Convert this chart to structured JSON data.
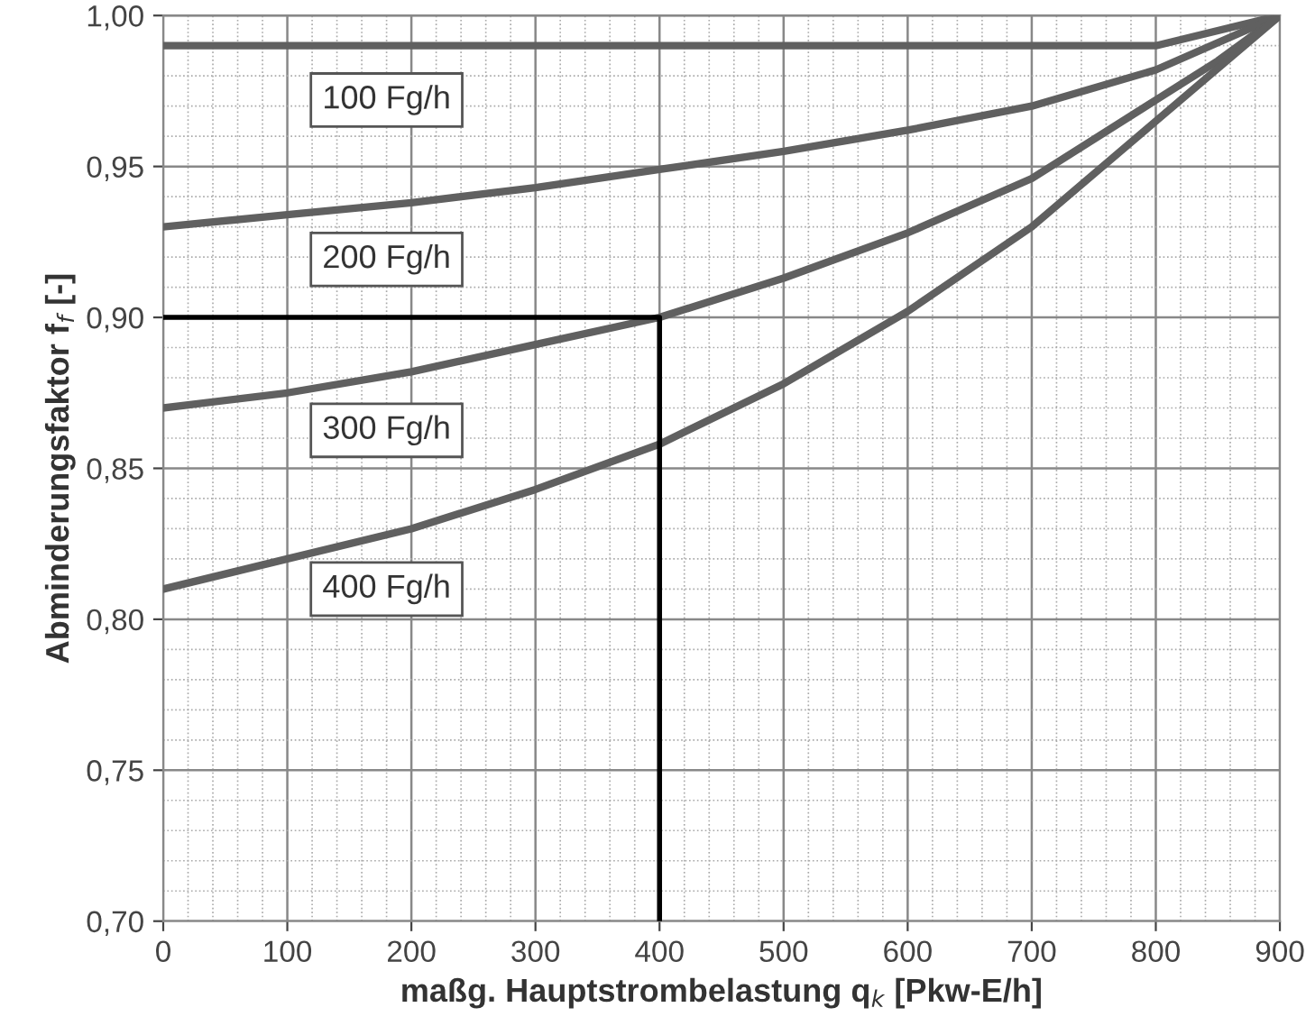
{
  "chart_data": {
    "type": "line",
    "xlabel": "maßg. Hauptstrombelastung q$_{k}$ [Pkw-E/h]",
    "ylabel": "Abminderungsfaktor f$_{f}$ [-]",
    "series": [
      {
        "name": "100 Fg/h",
        "color": "#606060",
        "x": [
          0,
          800,
          900
        ],
        "values": [
          0.99,
          0.99,
          1.0
        ]
      },
      {
        "name": "200 Fg/h",
        "color": "#606060",
        "x": [
          0,
          100,
          200,
          300,
          400,
          500,
          600,
          700,
          800,
          900
        ],
        "values": [
          0.93,
          0.934,
          0.938,
          0.943,
          0.949,
          0.955,
          0.962,
          0.97,
          0.982,
          1.0
        ]
      },
      {
        "name": "300 Fg/h",
        "color": "#606060",
        "x": [
          0,
          100,
          200,
          300,
          400,
          500,
          600,
          700,
          800,
          850,
          900
        ],
        "values": [
          0.87,
          0.875,
          0.882,
          0.891,
          0.9,
          0.913,
          0.928,
          0.946,
          0.972,
          0.985,
          1.0
        ]
      },
      {
        "name": "400 Fg/h",
        "color": "#606060",
        "x": [
          0,
          100,
          200,
          300,
          400,
          500,
          600,
          700,
          800,
          900
        ],
        "values": [
          0.81,
          0.82,
          0.83,
          0.843,
          0.858,
          0.878,
          0.902,
          0.93,
          0.965,
          1.0
        ]
      },
      {
        "color": "#000000",
        "x": [
          400,
          400,
          0
        ],
        "values": [
          0.7,
          0.9,
          0.9
        ]
      }
    ],
    "xlim": [
      0,
      900
    ],
    "xticks": [
      0,
      100,
      200,
      300,
      400,
      500,
      600,
      700,
      800,
      900
    ],
    "ylim": [
      0.7,
      1.0
    ],
    "yticks": [
      {
        "value": 0.7,
        "label": "0,70"
      },
      {
        "value": 0.75,
        "label": "0,75"
      },
      {
        "value": 0.8,
        "label": "0,80"
      },
      {
        "value": 0.85,
        "label": "0,85"
      },
      {
        "value": 0.9,
        "label": "0,90"
      },
      {
        "value": 0.95,
        "label": "0,95"
      },
      {
        "value": 1.0,
        "label": "1,00"
      }
    ],
    "grid": true,
    "legend": false,
    "marker": "none",
    "line_style": "solid"
  }
}
